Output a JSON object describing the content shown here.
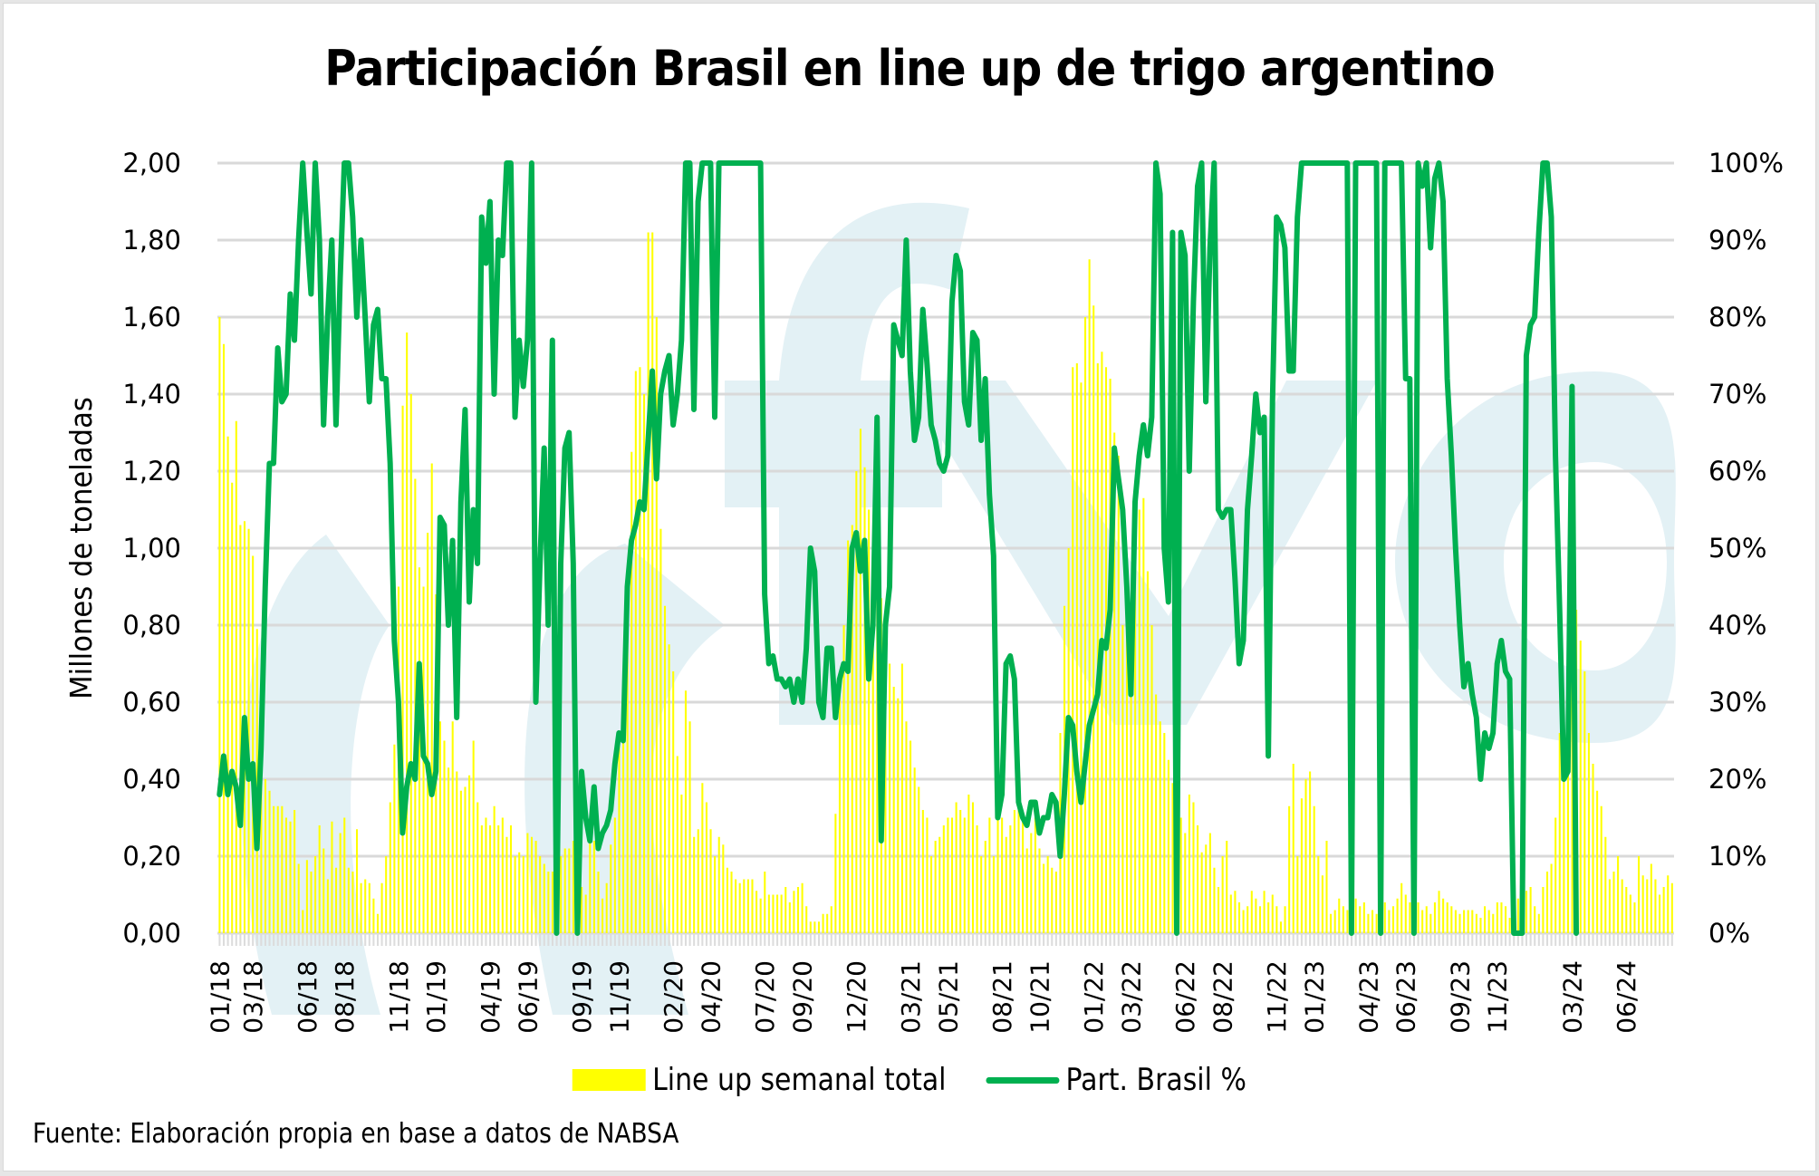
{
  "chart_data": {
    "type": "bar+line",
    "title": "Participación Brasil en line up de trigo argentino",
    "ylabel": "Millones de toneladas",
    "y2label": "",
    "ylim": [
      0,
      2.0
    ],
    "y2lim": [
      0,
      1.0
    ],
    "yticks": [
      "0,00",
      "0,20",
      "0,40",
      "0,60",
      "0,80",
      "1,00",
      "1,20",
      "1,40",
      "1,60",
      "1,80",
      "2,00"
    ],
    "y2ticks": [
      "0%",
      "10%",
      "20%",
      "30%",
      "40%",
      "50%",
      "60%",
      "70%",
      "80%",
      "90%",
      "100%"
    ],
    "xticks": [
      {
        "label": "01/18",
        "week": 0
      },
      {
        "label": "03/18",
        "week": 8
      },
      {
        "label": "06/18",
        "week": 21
      },
      {
        "label": "08/18",
        "week": 30
      },
      {
        "label": "11/18",
        "week": 43
      },
      {
        "label": "01/19",
        "week": 52
      },
      {
        "label": "04/19",
        "week": 65
      },
      {
        "label": "06/19",
        "week": 74
      },
      {
        "label": "09/19",
        "week": 87
      },
      {
        "label": "11/19",
        "week": 96
      },
      {
        "label": "02/20",
        "week": 109
      },
      {
        "label": "04/20",
        "week": 118
      },
      {
        "label": "07/20",
        "week": 131
      },
      {
        "label": "09/20",
        "week": 140
      },
      {
        "label": "12/20",
        "week": 153
      },
      {
        "label": "03/21",
        "week": 166
      },
      {
        "label": "05/21",
        "week": 175
      },
      {
        "label": "08/21",
        "week": 188
      },
      {
        "label": "10/21",
        "week": 197
      },
      {
        "label": "01/22",
        "week": 210
      },
      {
        "label": "03/22",
        "week": 219
      },
      {
        "label": "06/22",
        "week": 232
      },
      {
        "label": "08/22",
        "week": 241
      },
      {
        "label": "11/22",
        "week": 254
      },
      {
        "label": "01/23",
        "week": 263
      },
      {
        "label": "04/23",
        "week": 276
      },
      {
        "label": "06/23",
        "week": 285
      },
      {
        "label": "09/23",
        "week": 298
      },
      {
        "label": "11/23",
        "week": 307
      },
      {
        "label": "03/24",
        "week": 325
      },
      {
        "label": "06/24",
        "week": 338
      }
    ],
    "grid": true,
    "legend_position": "bottom",
    "series": [
      {
        "name": "Line up semanal total",
        "type": "bar",
        "axis": "left",
        "color": "#ffff00",
        "values": [
          1.6,
          1.53,
          1.29,
          1.17,
          1.33,
          1.06,
          1.07,
          1.05,
          0.98,
          0.79,
          0.52,
          0.4,
          0.37,
          0.33,
          0.33,
          0.33,
          0.3,
          0.29,
          0.32,
          0.18,
          0.06,
          0.19,
          0.16,
          0.2,
          0.28,
          0.22,
          0.14,
          0.29,
          0.17,
          0.26,
          0.3,
          0.17,
          0.16,
          0.27,
          0.13,
          0.14,
          0.13,
          0.09,
          0.05,
          0.13,
          0.2,
          0.34,
          0.49,
          0.9,
          1.37,
          1.56,
          1.4,
          1.18,
          0.95,
          0.9,
          1.04,
          1.22,
          0.88,
          0.55,
          0.5,
          0.43,
          0.55,
          0.42,
          0.37,
          0.38,
          0.41,
          0.5,
          0.34,
          0.28,
          0.3,
          0.28,
          0.33,
          0.28,
          0.3,
          0.25,
          0.28,
          0.2,
          0.21,
          0.2,
          0.26,
          0.25,
          0.24,
          0.2,
          0.18,
          0.16,
          0.16,
          0.17,
          0.2,
          0.22,
          0.22,
          0.24,
          0.14,
          0.12,
          0.1,
          0.24,
          0.24,
          0.16,
          0.09,
          0.13,
          0.23,
          0.3,
          0.49,
          0.52,
          0.79,
          1.25,
          1.46,
          1.47,
          1.4,
          1.82,
          1.82,
          1.6,
          1.05,
          0.85,
          0.75,
          0.68,
          0.46,
          0.36,
          0.63,
          0.55,
          0.25,
          0.27,
          0.39,
          0.34,
          0.27,
          0.2,
          0.25,
          0.23,
          0.17,
          0.16,
          0.14,
          0.13,
          0.14,
          0.14,
          0.14,
          0.11,
          0.09,
          0.16,
          0.1,
          0.1,
          0.1,
          0.1,
          0.12,
          0.08,
          0.11,
          0.12,
          0.13,
          0.07,
          0.03,
          0.03,
          0.03,
          0.05,
          0.05,
          0.07,
          0.31,
          0.67,
          0.8,
          1.02,
          1.06,
          1.2,
          1.31,
          1.21,
          1.1,
          0.95,
          0.92,
          0.87,
          0.81,
          0.7,
          0.64,
          0.61,
          0.7,
          0.55,
          0.5,
          0.43,
          0.38,
          0.32,
          0.3,
          0.2,
          0.24,
          0.25,
          0.28,
          0.3,
          0.3,
          0.34,
          0.32,
          0.3,
          0.36,
          0.34,
          0.28,
          0.2,
          0.24,
          0.3,
          0.2,
          0.33,
          0.3,
          0.25,
          0.28,
          0.32,
          0.35,
          0.3,
          0.22,
          0.26,
          0.3,
          0.22,
          0.18,
          0.2,
          0.17,
          0.16,
          0.52,
          0.85,
          1.0,
          1.47,
          1.48,
          1.43,
          1.6,
          1.75,
          1.63,
          1.48,
          1.51,
          1.47,
          1.44,
          1.3,
          1.24,
          0.8,
          0.78,
          0.76,
          0.96,
          1.1,
          1.13,
          0.94,
          0.8,
          0.62,
          0.55,
          0.52,
          0.45,
          0.39,
          0.33,
          0.3,
          0.26,
          0.36,
          0.34,
          0.28,
          0.21,
          0.23,
          0.26,
          0.17,
          0.12,
          0.2,
          0.24,
          0.1,
          0.11,
          0.08,
          0.06,
          0.07,
          0.11,
          0.09,
          0.07,
          0.11,
          0.08,
          0.1,
          0.07,
          0.03,
          0.07,
          0.33,
          0.44,
          0.2,
          0.35,
          0.4,
          0.42,
          0.33,
          0.2,
          0.15,
          0.24,
          0.05,
          0.06,
          0.09,
          0.07,
          0.06,
          0.1,
          0.09,
          0.07,
          0.08,
          0.05,
          0.06,
          0.05,
          0.03,
          0.08,
          0.06,
          0.07,
          0.09,
          0.13,
          0.1,
          0.08,
          0.12,
          0.08,
          0.06,
          0.07,
          0.05,
          0.08,
          0.11,
          0.09,
          0.08,
          0.07,
          0.06,
          0.05,
          0.06,
          0.06,
          0.06,
          0.05,
          0.04,
          0.07,
          0.06,
          0.05,
          0.08,
          0.08,
          0.07,
          0.04,
          0.05,
          0.09,
          0.1,
          0.11,
          0.12,
          0.07,
          0.05,
          0.12,
          0.16,
          0.18,
          0.3,
          0.52,
          0.56,
          0.65,
          0.78,
          0.84,
          0.76,
          0.68,
          0.52,
          0.44,
          0.37,
          0.33,
          0.25,
          0.14,
          0.16,
          0.2,
          0.14,
          0.12,
          0.1,
          0.08,
          0.2,
          0.15,
          0.14,
          0.18,
          0.14,
          0.1,
          0.12,
          0.15,
          0.13
        ]
      },
      {
        "name": "Part. Brasil %",
        "type": "line",
        "axis": "right",
        "color": "#00b050",
        "values": [
          0.18,
          0.23,
          0.18,
          0.21,
          0.19,
          0.14,
          0.28,
          0.2,
          0.22,
          0.11,
          0.24,
          0.45,
          0.61,
          0.61,
          0.76,
          0.69,
          0.7,
          0.83,
          0.77,
          0.9,
          1.0,
          0.91,
          0.83,
          1.0,
          0.9,
          0.66,
          0.8,
          0.9,
          0.66,
          0.85,
          1.0,
          1.0,
          0.93,
          0.8,
          0.9,
          0.8,
          0.69,
          0.79,
          0.81,
          0.72,
          0.72,
          0.61,
          0.38,
          0.3,
          0.13,
          0.19,
          0.22,
          0.2,
          0.35,
          0.23,
          0.22,
          0.18,
          0.21,
          0.54,
          0.53,
          0.4,
          0.51,
          0.28,
          0.56,
          0.68,
          0.43,
          0.55,
          0.48,
          0.93,
          0.87,
          0.95,
          0.7,
          0.9,
          0.88,
          1.0,
          1.0,
          0.67,
          0.77,
          0.71,
          0.77,
          1.0,
          0.3,
          0.48,
          0.63,
          0.4,
          0.77,
          0.0,
          0.48,
          0.63,
          0.65,
          0.48,
          0.0,
          0.21,
          0.15,
          0.12,
          0.19,
          0.11,
          0.13,
          0.14,
          0.16,
          0.22,
          0.26,
          0.25,
          0.45,
          0.51,
          0.53,
          0.56,
          0.55,
          0.64,
          0.73,
          0.59,
          0.7,
          0.73,
          0.75,
          0.66,
          0.7,
          0.77,
          1.0,
          1.0,
          0.68,
          0.95,
          1.0,
          1.0,
          1.0,
          0.67,
          1.0,
          1.0,
          1.0,
          1.0,
          1.0,
          1.0,
          1.0,
          1.0,
          1.0,
          1.0,
          1.0,
          0.44,
          0.35,
          0.36,
          0.33,
          0.33,
          0.32,
          0.33,
          0.3,
          0.33,
          0.3,
          0.37,
          0.5,
          0.47,
          0.3,
          0.28,
          0.37,
          0.37,
          0.28,
          0.33,
          0.35,
          0.34,
          0.5,
          0.52,
          0.47,
          0.51,
          0.33,
          0.4,
          0.67,
          0.12,
          0.4,
          0.45,
          0.79,
          0.77,
          0.75,
          0.9,
          0.73,
          0.64,
          0.67,
          0.81,
          0.74,
          0.66,
          0.64,
          0.61,
          0.6,
          0.62,
          0.82,
          0.88,
          0.86,
          0.69,
          0.66,
          0.78,
          0.77,
          0.64,
          0.72,
          0.57,
          0.49,
          0.15,
          0.18,
          0.35,
          0.36,
          0.33,
          0.17,
          0.15,
          0.14,
          0.17,
          0.17,
          0.13,
          0.15,
          0.15,
          0.18,
          0.17,
          0.1,
          0.18,
          0.28,
          0.27,
          0.21,
          0.17,
          0.22,
          0.27,
          0.29,
          0.31,
          0.38,
          0.37,
          0.42,
          0.63,
          0.59,
          0.55,
          0.45,
          0.31,
          0.56,
          0.62,
          0.66,
          0.62,
          0.67,
          1.0,
          0.96,
          0.5,
          0.43,
          0.91,
          0.0,
          0.91,
          0.88,
          0.6,
          0.82,
          0.97,
          1.0,
          0.69,
          0.89,
          1.0,
          0.55,
          0.54,
          0.55,
          0.55,
          0.46,
          0.35,
          0.38,
          0.55,
          0.62,
          0.7,
          0.65,
          0.67,
          0.23,
          0.69,
          0.93,
          0.92,
          0.89,
          0.73,
          0.73,
          0.93,
          1.0,
          1.0,
          1.0,
          1.0,
          1.0,
          1.0,
          1.0,
          1.0,
          1.0,
          1.0,
          1.0,
          1.0,
          0.0,
          1.0,
          1.0,
          1.0,
          1.0,
          1.0,
          1.0,
          0.0,
          1.0,
          1.0,
          1.0,
          1.0,
          1.0,
          0.72,
          0.72,
          0.0,
          1.0,
          0.97,
          1.0,
          0.89,
          0.98,
          1.0,
          0.95,
          0.72,
          0.62,
          0.5,
          0.4,
          0.32,
          0.35,
          0.31,
          0.28,
          0.2,
          0.26,
          0.24,
          0.26,
          0.35,
          0.38,
          0.34,
          0.33,
          0.0,
          0.0,
          0.0,
          0.75,
          0.79,
          0.8,
          0.91,
          1.0,
          1.0,
          0.93,
          0.62,
          0.42,
          0.2,
          0.21,
          0.71,
          0.0
        ]
      }
    ]
  },
  "legend": {
    "bar_label": "Line up semanal total",
    "line_label": "Part. Brasil %"
  },
  "source": "Fuente: Elaboración propia en base a datos de NABSA"
}
